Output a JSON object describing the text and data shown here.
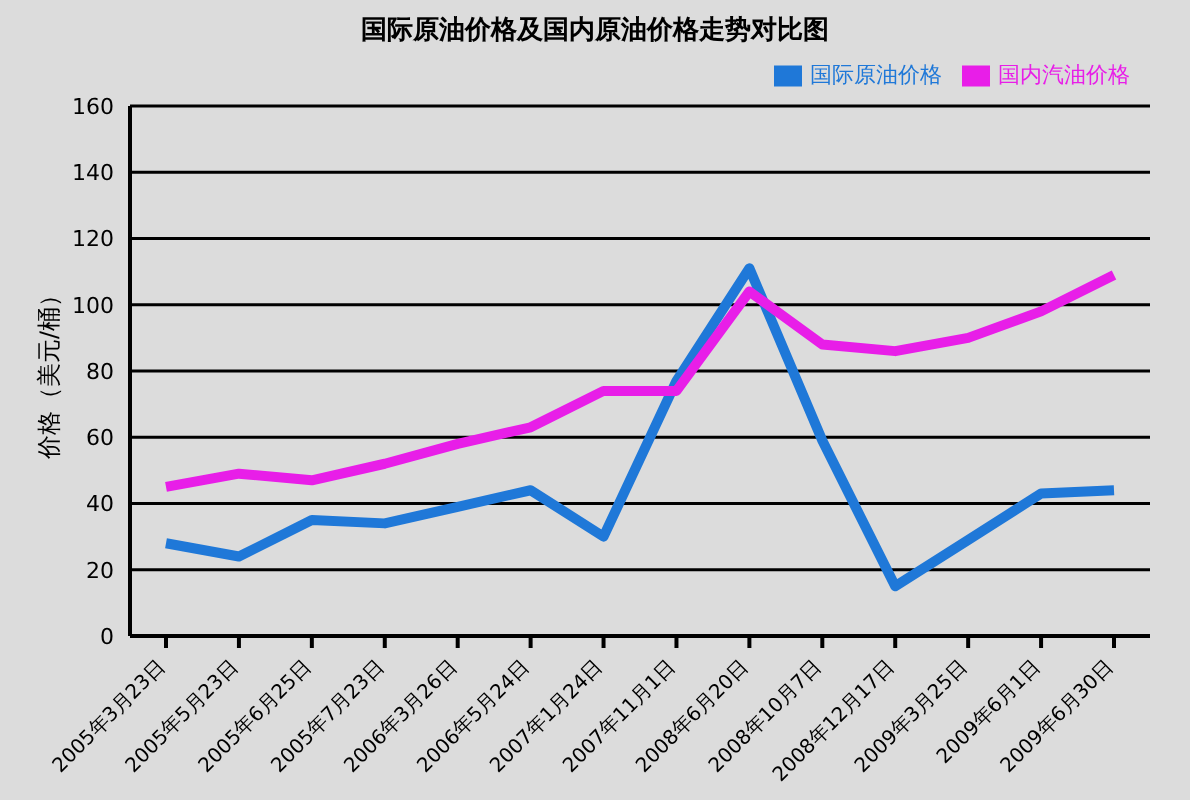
{
  "chart_data": {
    "type": "line",
    "title": "国际原油价格及国内原油价格走势对比图",
    "ylabel": "价格（美元/桶）",
    "categories": [
      "2005年3月23日",
      "2005年5月23日",
      "2005年6月25日",
      "2005年7月23日",
      "2006年3月26日",
      "2006年5月24日",
      "2007年1月24日",
      "2007年11月1日",
      "2008年6月20日",
      "2008年10月7日",
      "2008年12月17日",
      "2009年3月25日",
      "2009年6月1日",
      "2009年6月30日"
    ],
    "series": [
      {
        "name": "国际原油价格",
        "color": "#1f78d8",
        "values": [
          28,
          24,
          35,
          34,
          39,
          44,
          30,
          77,
          111,
          59,
          15,
          29,
          43,
          44
        ]
      },
      {
        "name": "国内汽油价格",
        "color": "#e81ee8",
        "values": [
          45,
          49,
          47,
          52,
          58,
          63,
          74,
          74,
          104,
          88,
          86,
          90,
          98,
          109
        ]
      }
    ],
    "ylim": [
      0,
      160
    ],
    "yticks": [
      0,
      20,
      40,
      60,
      80,
      100,
      120,
      140,
      160
    ],
    "grid": "y",
    "legend": "top right",
    "marker": "none",
    "line_style": "solid"
  }
}
